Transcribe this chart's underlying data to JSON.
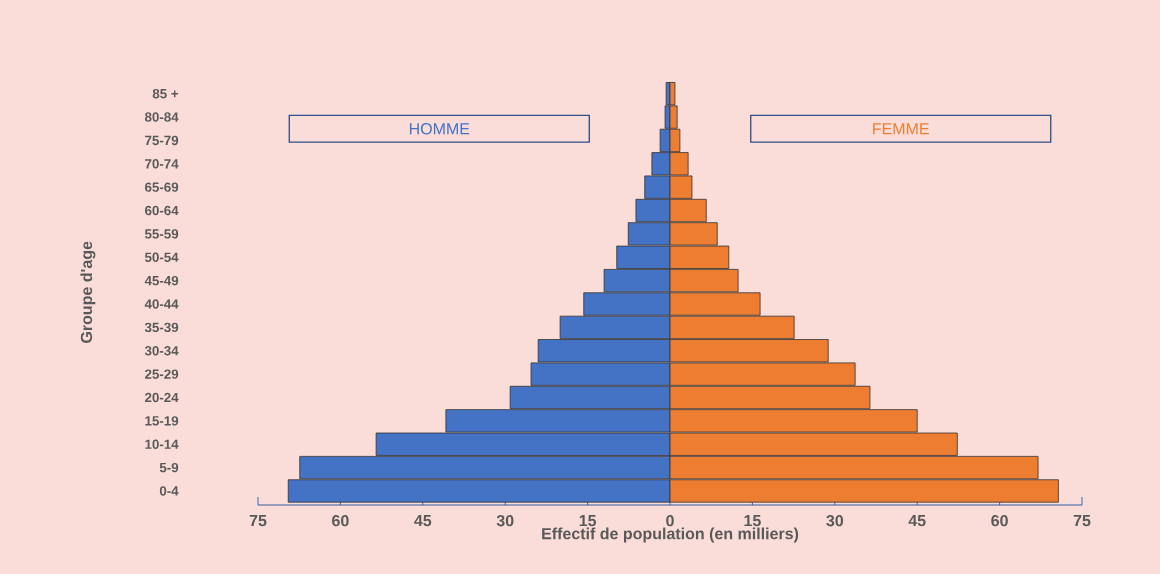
{
  "chart_data": {
    "type": "bar",
    "orientation": "horizontal",
    "stacked": true,
    "xlabel": "Effectif de population (en milliers)",
    "ylabel": "Groupe d'age",
    "categories": [
      "85 +",
      "80-84",
      "75-79",
      "70-74",
      "65-69",
      "60-64",
      "55-59",
      "50-54",
      "45-49",
      "40-44",
      "35-39",
      "30-34",
      "25-29",
      "20-24",
      "15-19",
      "10-14",
      "5-9",
      "0-4"
    ],
    "series": [
      {
        "name": "HOMME",
        "color": "#4472c4",
        "values": [
          -0.7,
          -0.9,
          -1.8,
          -3.3,
          -4.6,
          -6.2,
          -7.6,
          -9.7,
          -12,
          -15.7,
          -20,
          -24,
          -25.3,
          -29.1,
          -40.8,
          -53.5,
          -67.4,
          -69.5
        ]
      },
      {
        "name": "FEMME",
        "color": "#ed7d31",
        "values": [
          0.9,
          1.3,
          1.8,
          3.3,
          4,
          6.6,
          8.6,
          10.7,
          12.4,
          16.4,
          22.6,
          28.8,
          33.7,
          36.4,
          45,
          52.3,
          67,
          70.7
        ]
      }
    ],
    "xlim": [
      -75,
      75
    ],
    "xticks": [
      {
        "value": -75,
        "label": "75"
      },
      {
        "value": -60,
        "label": "60"
      },
      {
        "value": -45,
        "label": "45"
      },
      {
        "value": -30,
        "label": "30"
      },
      {
        "value": -15,
        "label": "15"
      },
      0,
      15,
      30,
      45,
      60,
      75
    ]
  }
}
